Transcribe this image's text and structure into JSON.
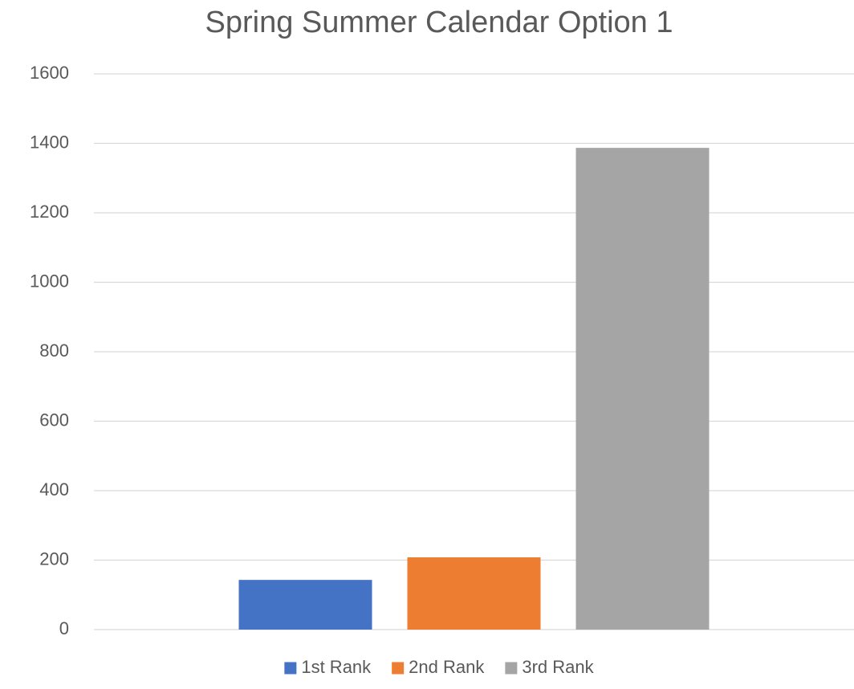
{
  "chart_data": {
    "type": "bar",
    "title": "Spring Summer Calendar Option 1",
    "categories": [
      null
    ],
    "series": [
      {
        "name": "1st Rank",
        "color": "#4472c4",
        "values": [
          143
        ]
      },
      {
        "name": "2nd Rank",
        "color": "#ed7d31",
        "values": [
          208
        ]
      },
      {
        "name": "3rd Rank",
        "color": "#a5a5a5",
        "values": [
          1387
        ]
      }
    ],
    "ylim": [
      0,
      1600
    ],
    "yticks": [
      0,
      200,
      400,
      600,
      800,
      1000,
      1200,
      1400,
      1600
    ],
    "grid": true,
    "legend": "bottom"
  }
}
